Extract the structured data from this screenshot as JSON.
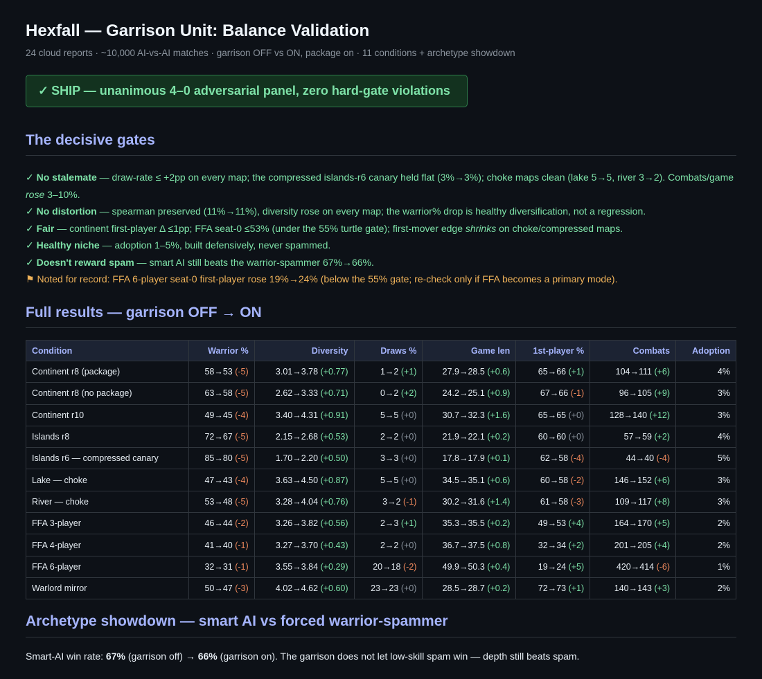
{
  "header": {
    "title": "Hexfall — Garrison Unit: Balance Validation",
    "subtitle": "24 cloud reports · ~10,000 AI-vs-AI matches · garrison OFF vs ON, package on · 11 conditions + archetype showdown"
  },
  "verdict": {
    "check": "✓",
    "text": "SHIP — unanimous 4–0 adversarial panel, zero hard-gate violations"
  },
  "gates_section": {
    "heading": "The decisive gates",
    "items": [
      {
        "mark": "✓",
        "name": "No stalemate",
        "text_a": " — draw-rate ≤ +2pp on every map; the compressed islands-r6 canary held flat (3%→3%); choke maps clean (lake 5→5, river 3→2). Combats/game ",
        "em": "rose",
        "text_b": " 3–10%."
      },
      {
        "mark": "✓",
        "name": "No distortion",
        "text_a": " — spearman preserved (11%→11%), diversity rose on every map; the warrior% drop is healthy diversification, not a regression.",
        "em": "",
        "text_b": ""
      },
      {
        "mark": "✓",
        "name": "Fair",
        "text_a": " — continent first-player Δ ≤1pp; FFA seat-0 ≤53% (under the 55% turtle gate); first-mover edge ",
        "em": "shrinks",
        "text_b": " on choke/compressed maps."
      },
      {
        "mark": "✓",
        "name": "Healthy niche",
        "text_a": " — adoption 1–5%, built defensively, never spammed.",
        "em": "",
        "text_b": ""
      },
      {
        "mark": "✓",
        "name": "Doesn't reward spam",
        "text_a": " — smart AI still beats the warrior-spammer 67%→66%.",
        "em": "",
        "text_b": ""
      }
    ],
    "note": {
      "mark": "⚑",
      "text": "Noted for record: FFA 6-player seat-0 first-player rose 19%→24% (below the 55% gate; re-check only if FFA becomes a primary mode)."
    }
  },
  "results_section": {
    "heading": "Full results — garrison OFF → ON",
    "columns": [
      "Condition",
      "Warrior %",
      "Diversity",
      "Draws %",
      "Game len",
      "1st-player %",
      "Combats",
      "Adoption"
    ],
    "rows": [
      {
        "condition": "Continent r8 (package)",
        "cells": [
          [
            "58→53",
            "(-5)",
            "neg"
          ],
          [
            "3.01→3.78",
            "(+0.77)",
            "pos"
          ],
          [
            "1→2",
            "(+1)",
            "pos"
          ],
          [
            "27.9→28.5",
            "(+0.6)",
            "pos"
          ],
          [
            "65→66",
            "(+1)",
            "pos"
          ],
          [
            "104→111",
            "(+6)",
            "pos"
          ]
        ],
        "adoption": "4%"
      },
      {
        "condition": "Continent r8 (no package)",
        "cells": [
          [
            "63→58",
            "(-5)",
            "neg"
          ],
          [
            "2.62→3.33",
            "(+0.71)",
            "pos"
          ],
          [
            "0→2",
            "(+2)",
            "pos"
          ],
          [
            "24.2→25.1",
            "(+0.9)",
            "pos"
          ],
          [
            "67→66",
            "(-1)",
            "neg"
          ],
          [
            "96→105",
            "(+9)",
            "pos"
          ]
        ],
        "adoption": "3%"
      },
      {
        "condition": "Continent r10",
        "cells": [
          [
            "49→45",
            "(-4)",
            "neg"
          ],
          [
            "3.40→4.31",
            "(+0.91)",
            "pos"
          ],
          [
            "5→5",
            "(+0)",
            "zero"
          ],
          [
            "30.7→32.3",
            "(+1.6)",
            "pos"
          ],
          [
            "65→65",
            "(+0)",
            "zero"
          ],
          [
            "128→140",
            "(+12)",
            "pos"
          ]
        ],
        "adoption": "3%"
      },
      {
        "condition": "Islands r8",
        "cells": [
          [
            "72→67",
            "(-5)",
            "neg"
          ],
          [
            "2.15→2.68",
            "(+0.53)",
            "pos"
          ],
          [
            "2→2",
            "(+0)",
            "zero"
          ],
          [
            "21.9→22.1",
            "(+0.2)",
            "pos"
          ],
          [
            "60→60",
            "(+0)",
            "zero"
          ],
          [
            "57→59",
            "(+2)",
            "pos"
          ]
        ],
        "adoption": "4%"
      },
      {
        "condition": "Islands r6 — compressed canary",
        "cells": [
          [
            "85→80",
            "(-5)",
            "neg"
          ],
          [
            "1.70→2.20",
            "(+0.50)",
            "pos"
          ],
          [
            "3→3",
            "(+0)",
            "zero"
          ],
          [
            "17.8→17.9",
            "(+0.1)",
            "pos"
          ],
          [
            "62→58",
            "(-4)",
            "neg"
          ],
          [
            "44→40",
            "(-4)",
            "neg"
          ]
        ],
        "adoption": "5%"
      },
      {
        "condition": "Lake — choke",
        "cells": [
          [
            "47→43",
            "(-4)",
            "neg"
          ],
          [
            "3.63→4.50",
            "(+0.87)",
            "pos"
          ],
          [
            "5→5",
            "(+0)",
            "zero"
          ],
          [
            "34.5→35.1",
            "(+0.6)",
            "pos"
          ],
          [
            "60→58",
            "(-2)",
            "neg"
          ],
          [
            "146→152",
            "(+6)",
            "pos"
          ]
        ],
        "adoption": "3%"
      },
      {
        "condition": "River — choke",
        "cells": [
          [
            "53→48",
            "(-5)",
            "neg"
          ],
          [
            "3.28→4.04",
            "(+0.76)",
            "pos"
          ],
          [
            "3→2",
            "(-1)",
            "neg"
          ],
          [
            "30.2→31.6",
            "(+1.4)",
            "pos"
          ],
          [
            "61→58",
            "(-3)",
            "neg"
          ],
          [
            "109→117",
            "(+8)",
            "pos"
          ]
        ],
        "adoption": "3%"
      },
      {
        "condition": "FFA 3-player",
        "cells": [
          [
            "46→44",
            "(-2)",
            "neg"
          ],
          [
            "3.26→3.82",
            "(+0.56)",
            "pos"
          ],
          [
            "2→3",
            "(+1)",
            "pos"
          ],
          [
            "35.3→35.5",
            "(+0.2)",
            "pos"
          ],
          [
            "49→53",
            "(+4)",
            "pos"
          ],
          [
            "164→170",
            "(+5)",
            "pos"
          ]
        ],
        "adoption": "2%"
      },
      {
        "condition": "FFA 4-player",
        "cells": [
          [
            "41→40",
            "(-1)",
            "neg"
          ],
          [
            "3.27→3.70",
            "(+0.43)",
            "pos"
          ],
          [
            "2→2",
            "(+0)",
            "zero"
          ],
          [
            "36.7→37.5",
            "(+0.8)",
            "pos"
          ],
          [
            "32→34",
            "(+2)",
            "pos"
          ],
          [
            "201→205",
            "(+4)",
            "pos"
          ]
        ],
        "adoption": "2%"
      },
      {
        "condition": "FFA 6-player",
        "cells": [
          [
            "32→31",
            "(-1)",
            "neg"
          ],
          [
            "3.55→3.84",
            "(+0.29)",
            "pos"
          ],
          [
            "20→18",
            "(-2)",
            "neg"
          ],
          [
            "49.9→50.3",
            "(+0.4)",
            "pos"
          ],
          [
            "19→24",
            "(+5)",
            "pos"
          ],
          [
            "420→414",
            "(-6)",
            "neg"
          ]
        ],
        "adoption": "1%"
      },
      {
        "condition": "Warlord mirror",
        "cells": [
          [
            "50→47",
            "(-3)",
            "neg"
          ],
          [
            "4.02→4.62",
            "(+0.60)",
            "pos"
          ],
          [
            "23→23",
            "(+0)",
            "zero"
          ],
          [
            "28.5→28.7",
            "(+0.2)",
            "pos"
          ],
          [
            "72→73",
            "(+1)",
            "pos"
          ],
          [
            "140→143",
            "(+3)",
            "pos"
          ]
        ],
        "adoption": "2%"
      }
    ]
  },
  "showdown_section": {
    "heading": "Archetype showdown — smart AI vs forced warrior-spammer",
    "line_a": "Smart-AI win rate: ",
    "v1": "67%",
    "line_b": " (garrison off) → ",
    "v2": "66%",
    "line_c": " (garrison on). The garrison does not let low-skill spam win — depth still beats spam."
  },
  "colors": {
    "positive": "#7ee2a8",
    "negative": "#f08a5d",
    "neutral": "#8b949e",
    "heading": "#a5b4fc",
    "note": "#f0b35a"
  }
}
